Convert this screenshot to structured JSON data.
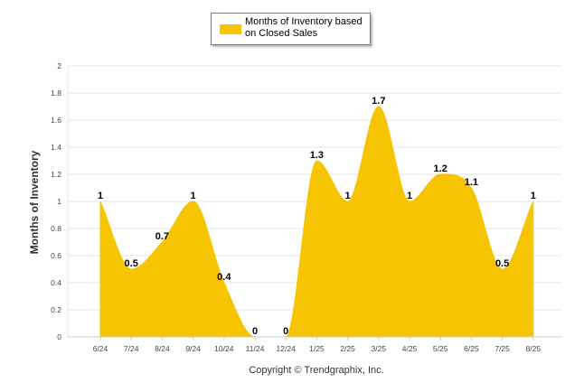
{
  "legend": {
    "label": "Months of Inventory based on Closed Sales"
  },
  "colors": {
    "series_fill": "#f6c400",
    "grid": "#e6e6e6"
  },
  "chart_data": {
    "type": "area",
    "categories": [
      "6/24",
      "7/24",
      "8/24",
      "9/24",
      "10/24",
      "11/24",
      "12/24",
      "1/25",
      "2/25",
      "3/25",
      "4/25",
      "5/25",
      "6/25",
      "7/25",
      "8/25"
    ],
    "series": [
      {
        "name": "Months of Inventory based on Closed Sales",
        "values": [
          1,
          0.5,
          0.7,
          1,
          0.4,
          0,
          0,
          1.3,
          1,
          1.7,
          1,
          1.2,
          1.1,
          0.5,
          1
        ],
        "labels": [
          "1",
          "0.5",
          "0.7",
          "1",
          "0.4",
          "0",
          "0",
          "1.3",
          "1",
          "1.7",
          "1",
          "1.2",
          "1.1",
          "0.5",
          "1"
        ]
      }
    ],
    "ylabel": "Months of Inventory",
    "xlabel": "",
    "ylim": [
      0,
      2
    ],
    "yticks": [
      0,
      0.2,
      0.4,
      0.6,
      0.8,
      1,
      1.2,
      1.4,
      1.6,
      1.8,
      2
    ],
    "ytick_labels": [
      "0",
      "0.2",
      "0.4",
      "0.6",
      "0.8",
      "1",
      "1.2",
      "1.4",
      "1.6",
      "1.8",
      "2"
    ],
    "grid": true,
    "legend_position": "top-center",
    "smooth": true
  },
  "footer": {
    "copyright": "Copyright © Trendgraphix, Inc."
  }
}
